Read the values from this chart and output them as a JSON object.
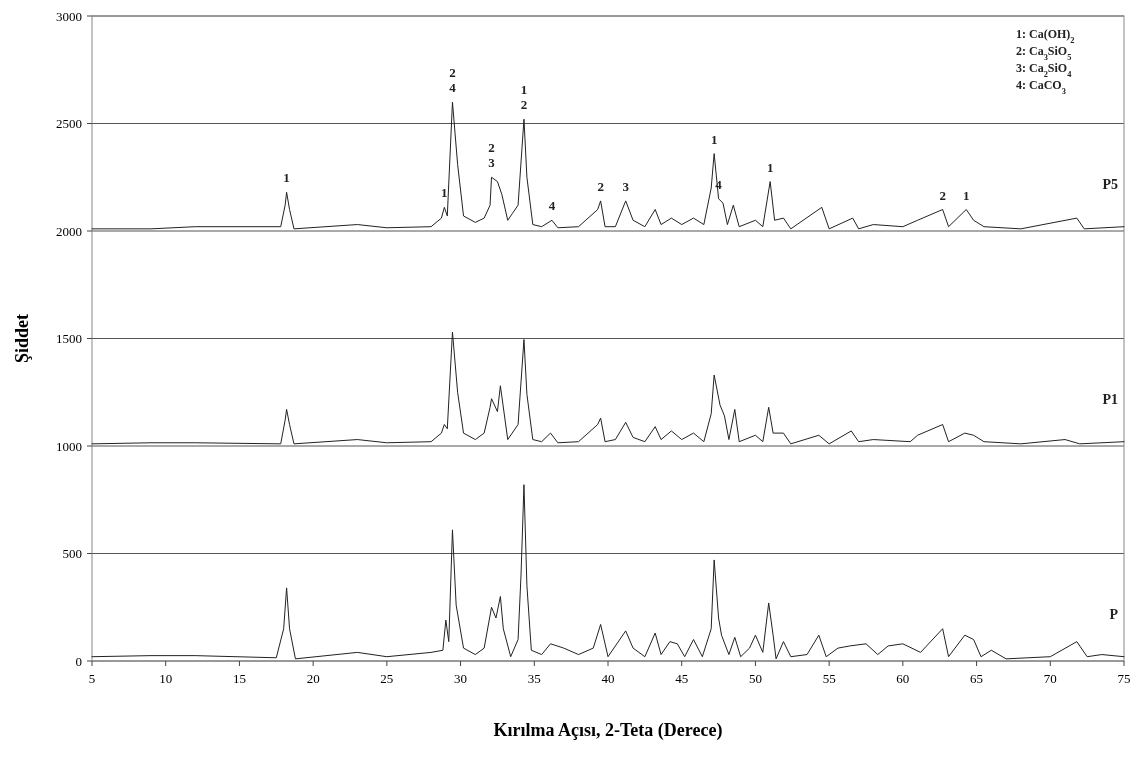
{
  "chart_data": {
    "type": "line",
    "xlabel": "Kırılma Açısı, 2-Teta (Derece)",
    "ylabel": "Şiddet",
    "xlim": [
      5,
      75
    ],
    "ylim": [
      0,
      3000
    ],
    "xticks": [
      5,
      10,
      15,
      20,
      25,
      30,
      35,
      40,
      45,
      50,
      55,
      60,
      65,
      70,
      75
    ],
    "yticks": [
      0,
      500,
      1000,
      1500,
      2000,
      2500,
      3000
    ],
    "grid": "y",
    "marker": "none",
    "line_style": "solid",
    "series": [
      {
        "name": "P5",
        "color": "#222222",
        "x": [
          5,
          9,
          12,
          17.8,
          18.1,
          18.2,
          18.4,
          18.7,
          23,
          25,
          28,
          28.7,
          28.9,
          29.1,
          29.45,
          29.8,
          30.2,
          31,
          31.6,
          32,
          32.1,
          32.5,
          32.8,
          33.2,
          33.5,
          33.9,
          34.3,
          34.5,
          34.9,
          35.5,
          36.2,
          36.6,
          38,
          39.3,
          39.5,
          39.8,
          40.5,
          41.2,
          41.7,
          42.5,
          43.2,
          43.6,
          44.3,
          45,
          45.8,
          46.5,
          47,
          47.2,
          47.5,
          47.8,
          48.1,
          48.5,
          48.9,
          50,
          50.5,
          51,
          51.3,
          51.9,
          52.4,
          54.5,
          55,
          56.6,
          57,
          58,
          60,
          61,
          62.7,
          63.1,
          64.3,
          64.8,
          65.5,
          68,
          71.8,
          72.3,
          75
        ],
        "values": [
          2010,
          2010,
          2020,
          2020,
          2120,
          2180,
          2100,
          2010,
          2030,
          2015,
          2020,
          2060,
          2110,
          2070,
          2600,
          2310,
          2070,
          2040,
          2060,
          2120,
          2250,
          2230,
          2170,
          2050,
          2080,
          2120,
          2520,
          2250,
          2030,
          2020,
          2050,
          2015,
          2020,
          2100,
          2140,
          2020,
          2020,
          2140,
          2050,
          2020,
          2100,
          2030,
          2060,
          2030,
          2060,
          2030,
          2200,
          2360,
          2150,
          2130,
          2030,
          2120,
          2020,
          2050,
          2020,
          2230,
          2050,
          2060,
          2010,
          2110,
          2010,
          2060,
          2010,
          2030,
          2020,
          2050,
          2100,
          2020,
          2100,
          2050,
          2020,
          2010,
          2060,
          2010,
          2020
        ]
      },
      {
        "name": "P1",
        "color": "#222222",
        "x": [
          5,
          9,
          12,
          17.8,
          18.1,
          18.2,
          18.4,
          18.7,
          23,
          25,
          28,
          28.7,
          28.9,
          29.1,
          29.45,
          29.8,
          30.2,
          31,
          31.6,
          32,
          32.1,
          32.5,
          32.7,
          33.2,
          33.5,
          33.9,
          34.3,
          34.5,
          34.9,
          35.5,
          36.1,
          36.6,
          38,
          39.3,
          39.5,
          39.8,
          40.5,
          41.2,
          41.7,
          42.5,
          43.2,
          43.6,
          44.3,
          45,
          45.8,
          46.5,
          47,
          47.2,
          47.6,
          47.9,
          48.2,
          48.6,
          48.9,
          50,
          50.5,
          50.9,
          51.2,
          51.9,
          52.4,
          54.3,
          55,
          56.5,
          57,
          58,
          60.5,
          61,
          62.7,
          63.1,
          64.2,
          64.8,
          65.5,
          68,
          71,
          72,
          75
        ],
        "values": [
          1010,
          1015,
          1015,
          1010,
          1120,
          1170,
          1100,
          1010,
          1030,
          1015,
          1020,
          1060,
          1100,
          1080,
          1530,
          1250,
          1060,
          1030,
          1060,
          1180,
          1220,
          1160,
          1280,
          1030,
          1060,
          1100,
          1495,
          1240,
          1030,
          1020,
          1060,
          1015,
          1020,
          1100,
          1130,
          1020,
          1030,
          1110,
          1040,
          1020,
          1090,
          1030,
          1070,
          1030,
          1060,
          1020,
          1150,
          1330,
          1190,
          1140,
          1030,
          1170,
          1020,
          1050,
          1020,
          1180,
          1060,
          1060,
          1010,
          1050,
          1010,
          1070,
          1020,
          1030,
          1020,
          1050,
          1100,
          1020,
          1060,
          1050,
          1020,
          1010,
          1030,
          1010,
          1020
        ]
      },
      {
        "name": "P",
        "color": "#222222",
        "x": [
          5,
          9,
          12,
          17.5,
          18,
          18.2,
          18.4,
          18.8,
          23,
          25,
          28,
          28.8,
          29,
          29.2,
          29.45,
          29.7,
          30.2,
          31,
          31.6,
          32.1,
          32.4,
          32.7,
          32.9,
          33.4,
          33.9,
          34.1,
          34.3,
          34.5,
          34.8,
          35.5,
          36.1,
          37,
          38,
          39,
          39.5,
          40,
          41.2,
          41.7,
          42.5,
          43.2,
          43.6,
          44.2,
          44.7,
          45.2,
          45.8,
          46.4,
          47,
          47.2,
          47.5,
          47.7,
          48.2,
          48.6,
          49,
          49.6,
          50,
          50.5,
          50.9,
          51.2,
          51.4,
          51.9,
          52.4,
          53.5,
          54.3,
          54.8,
          55.6,
          56.4,
          57.5,
          58.3,
          59,
          60,
          61.2,
          62.7,
          63.1,
          64.2,
          64.8,
          65.3,
          66,
          67,
          70,
          71.8,
          72.5,
          73.5,
          75
        ],
        "values": [
          20,
          25,
          25,
          15,
          150,
          340,
          150,
          10,
          40,
          20,
          40,
          50,
          190,
          90,
          610,
          260,
          60,
          30,
          60,
          250,
          200,
          300,
          150,
          20,
          100,
          400,
          820,
          350,
          50,
          30,
          80,
          60,
          30,
          60,
          170,
          20,
          140,
          60,
          20,
          130,
          30,
          90,
          80,
          20,
          100,
          20,
          150,
          470,
          200,
          120,
          30,
          110,
          20,
          60,
          120,
          40,
          270,
          120,
          10,
          90,
          20,
          30,
          120,
          20,
          60,
          70,
          80,
          30,
          70,
          80,
          40,
          150,
          20,
          120,
          100,
          20,
          50,
          10,
          20,
          90,
          20,
          30,
          20
        ]
      }
    ],
    "annotations": [
      "1: Ca(OH)$_{2}$",
      "2: Ca$_{3}$SiO$_{5}$",
      "3: Ca$_{2}$SiO$_{4}$",
      "4: CaCO$_{3}$",
      {
        "text": "1",
        "x": 18.2,
        "y": 2180
      },
      {
        "text": "1",
        "x": 28.9,
        "y": 2110
      },
      {
        "text": "2",
        "x": 29.45,
        "y": 2600
      },
      {
        "text": "4",
        "x": 29.45,
        "y": 2600
      },
      {
        "text": "2",
        "x": 32.1,
        "y": 2250
      },
      {
        "text": "3",
        "x": 32.1,
        "y": 2250
      },
      {
        "text": "1",
        "x": 34.3,
        "y": 2520
      },
      {
        "text": "2",
        "x": 34.3,
        "y": 2520
      },
      {
        "text": "4",
        "x": 36.2,
        "y": 2050
      },
      {
        "text": "2",
        "x": 39.5,
        "y": 2140
      },
      {
        "text": "3",
        "x": 41.2,
        "y": 2140
      },
      {
        "text": "1",
        "x": 47.2,
        "y": 2360
      },
      {
        "text": "4",
        "x": 47.5,
        "y": 2150
      },
      {
        "text": "1",
        "x": 51,
        "y": 2230
      },
      {
        "text": "2",
        "x": 62.7,
        "y": 2100
      },
      {
        "text": "1",
        "x": 64.3,
        "y": 2100
      }
    ]
  }
}
